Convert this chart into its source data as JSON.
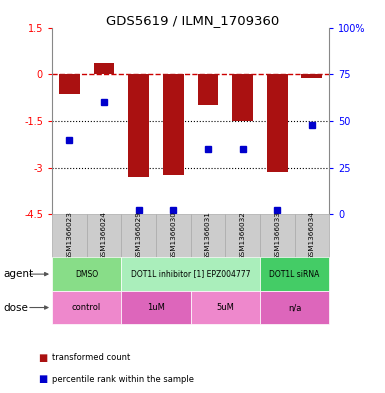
{
  "title": "GDS5619 / ILMN_1709360",
  "samples": [
    "GSM1366023",
    "GSM1366024",
    "GSM1366029",
    "GSM1366030",
    "GSM1366031",
    "GSM1366032",
    "GSM1366033",
    "GSM1366034"
  ],
  "bar_values": [
    -0.65,
    0.35,
    -3.3,
    -3.25,
    -1.0,
    -1.5,
    -3.15,
    -0.12
  ],
  "percentile_values": [
    40,
    60,
    2,
    2,
    35,
    35,
    2,
    48
  ],
  "ylim_left": [
    -4.5,
    1.5
  ],
  "ylim_right": [
    0,
    100
  ],
  "yticks_left": [
    1.5,
    0,
    -1.5,
    -3,
    -4.5
  ],
  "yticks_right": [
    100,
    75,
    50,
    25,
    0
  ],
  "ytick_labels_right": [
    "100%",
    "75",
    "50",
    "25",
    "0"
  ],
  "hlines": [
    0,
    -1.5,
    -3
  ],
  "hline_styles": [
    "dashed",
    "dotted",
    "dotted"
  ],
  "hline_colors": [
    "#CC0000",
    "black",
    "black"
  ],
  "bar_color": "#AA1111",
  "dot_color": "#0000CC",
  "agent_groups": [
    {
      "label": "DMSO",
      "start": 0,
      "end": 2,
      "color": "#88DD88"
    },
    {
      "label": "DOT1L inhibitor [1] EPZ004777",
      "start": 2,
      "end": 6,
      "color": "#AAEEBB"
    },
    {
      "label": "DOT1L siRNA",
      "start": 6,
      "end": 8,
      "color": "#44CC66"
    }
  ],
  "dose_groups": [
    {
      "label": "control",
      "start": 0,
      "end": 2,
      "color": "#EE88CC"
    },
    {
      "label": "1uM",
      "start": 2,
      "end": 4,
      "color": "#DD66BB"
    },
    {
      "label": "5uM",
      "start": 4,
      "end": 6,
      "color": "#EE88CC"
    },
    {
      "label": "n/a",
      "start": 6,
      "end": 8,
      "color": "#DD66BB"
    }
  ],
  "legend_items": [
    {
      "label": "transformed count",
      "color": "#AA1111"
    },
    {
      "label": "percentile rank within the sample",
      "color": "#0000CC"
    }
  ],
  "agent_label": "agent",
  "dose_label": "dose",
  "background_color": "#ffffff",
  "gray_color": "#CCCCCC",
  "gray_edge": "#AAAAAA"
}
